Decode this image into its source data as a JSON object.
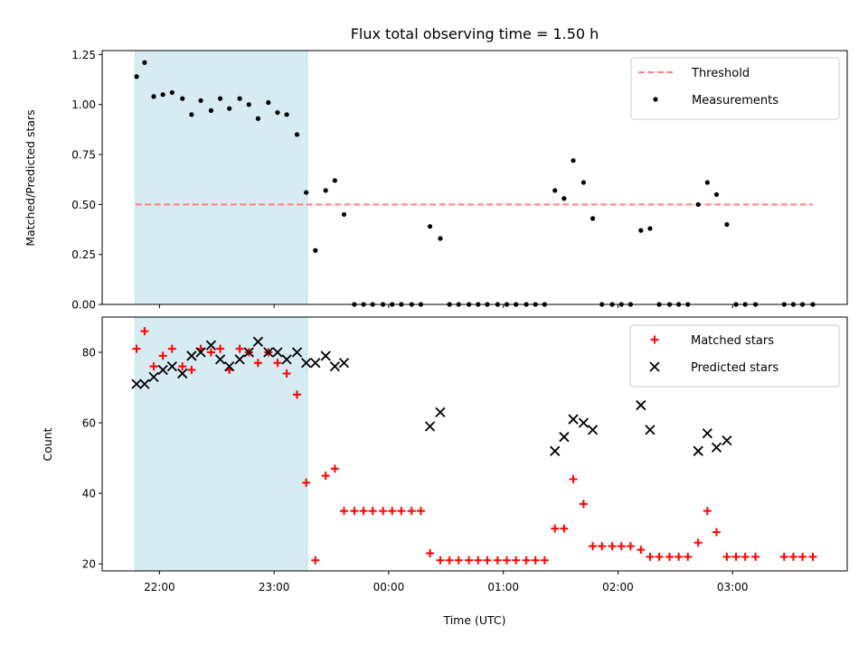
{
  "chart_data": {
    "title": "Flux total observing time = 1.50 h",
    "xlabel": "Time (UTC)",
    "x_tick_labels": [
      "22:00",
      "23:00",
      "00:00",
      "01:00",
      "02:00",
      "03:00"
    ],
    "x_tick_hours": [
      22.0,
      23.0,
      24.0,
      25.0,
      26.0,
      27.0
    ],
    "xlim_hours": [
      21.5,
      28.0
    ],
    "highlight_span_hours": [
      21.79,
      23.29
    ],
    "highlight_color": "#add8e6",
    "top": {
      "type": "scatter",
      "ylabel": "Matched/Predicted stars",
      "ylim": [
        0,
        1.27
      ],
      "y_tick_labels": [
        "0.00",
        "0.25",
        "0.50",
        "0.75",
        "1.00",
        "1.25"
      ],
      "y_ticks": [
        0,
        0.25,
        0.5,
        0.75,
        1.0,
        1.25
      ],
      "threshold": {
        "name": "Threshold",
        "value": 0.5,
        "x_range_hours": [
          21.79,
          27.7
        ],
        "color": "#ff7f7f"
      },
      "series": [
        {
          "name": "Measurements",
          "color": "#000000",
          "points": [
            [
              21.8,
              1.14
            ],
            [
              21.87,
              1.21
            ],
            [
              21.95,
              1.04
            ],
            [
              22.03,
              1.05
            ],
            [
              22.11,
              1.06
            ],
            [
              22.2,
              1.03
            ],
            [
              22.28,
              0.95
            ],
            [
              22.36,
              1.02
            ],
            [
              22.45,
              0.97
            ],
            [
              22.53,
              1.03
            ],
            [
              22.61,
              0.98
            ],
            [
              22.7,
              1.03
            ],
            [
              22.78,
              1.0
            ],
            [
              22.86,
              0.93
            ],
            [
              22.95,
              1.01
            ],
            [
              23.03,
              0.96
            ],
            [
              23.11,
              0.95
            ],
            [
              23.2,
              0.85
            ],
            [
              23.28,
              0.56
            ],
            [
              23.36,
              0.27
            ],
            [
              23.45,
              0.57
            ],
            [
              23.53,
              0.62
            ],
            [
              23.61,
              0.45
            ],
            [
              23.7,
              0
            ],
            [
              23.78,
              0
            ],
            [
              23.86,
              0
            ],
            [
              23.95,
              0
            ],
            [
              24.03,
              0
            ],
            [
              24.11,
              0
            ],
            [
              24.2,
              0
            ],
            [
              24.28,
              0
            ],
            [
              24.36,
              0.39
            ],
            [
              24.45,
              0.33
            ],
            [
              24.53,
              0
            ],
            [
              24.61,
              0
            ],
            [
              24.7,
              0
            ],
            [
              24.78,
              0
            ],
            [
              24.86,
              0
            ],
            [
              24.95,
              0
            ],
            [
              25.03,
              0
            ],
            [
              25.11,
              0
            ],
            [
              25.2,
              0
            ],
            [
              25.28,
              0
            ],
            [
              25.36,
              0
            ],
            [
              25.45,
              0.57
            ],
            [
              25.53,
              0.53
            ],
            [
              25.61,
              0.72
            ],
            [
              25.7,
              0.61
            ],
            [
              25.78,
              0.43
            ],
            [
              25.86,
              0
            ],
            [
              25.95,
              0
            ],
            [
              26.03,
              0
            ],
            [
              26.11,
              0
            ],
            [
              26.2,
              0.37
            ],
            [
              26.28,
              0.38
            ],
            [
              26.36,
              0
            ],
            [
              26.45,
              0
            ],
            [
              26.53,
              0
            ],
            [
              26.61,
              0
            ],
            [
              26.7,
              0.5
            ],
            [
              26.78,
              0.61
            ],
            [
              26.86,
              0.55
            ],
            [
              26.95,
              0.4
            ],
            [
              27.03,
              0
            ],
            [
              27.11,
              0
            ],
            [
              27.2,
              0
            ],
            [
              27.45,
              0
            ],
            [
              27.53,
              0
            ],
            [
              27.61,
              0
            ],
            [
              27.7,
              0
            ]
          ]
        }
      ]
    },
    "bottom": {
      "type": "scatter",
      "ylabel": "Count",
      "ylim": [
        18,
        90
      ],
      "y_tick_labels": [
        "20",
        "40",
        "60",
        "80"
      ],
      "y_ticks": [
        20,
        40,
        60,
        80
      ],
      "series": [
        {
          "name": "Matched stars",
          "marker": "plus",
          "color": "#ff0000",
          "points": [
            [
              21.8,
              81
            ],
            [
              21.87,
              86
            ],
            [
              21.95,
              76
            ],
            [
              22.03,
              79
            ],
            [
              22.11,
              81
            ],
            [
              22.2,
              76
            ],
            [
              22.28,
              75
            ],
            [
              22.36,
              81
            ],
            [
              22.45,
              80
            ],
            [
              22.53,
              81
            ],
            [
              22.61,
              75
            ],
            [
              22.7,
              81
            ],
            [
              22.78,
              80
            ],
            [
              22.86,
              77
            ],
            [
              22.95,
              80
            ],
            [
              23.03,
              77
            ],
            [
              23.11,
              74
            ],
            [
              23.2,
              68
            ],
            [
              23.28,
              43
            ],
            [
              23.36,
              21
            ],
            [
              23.45,
              45
            ],
            [
              23.53,
              47
            ],
            [
              23.61,
              35
            ],
            [
              23.7,
              35
            ],
            [
              23.78,
              35
            ],
            [
              23.86,
              35
            ],
            [
              23.95,
              35
            ],
            [
              24.03,
              35
            ],
            [
              24.11,
              35
            ],
            [
              24.2,
              35
            ],
            [
              24.28,
              35
            ],
            [
              24.36,
              23
            ],
            [
              24.45,
              21
            ],
            [
              24.53,
              21
            ],
            [
              24.61,
              21
            ],
            [
              24.7,
              21
            ],
            [
              24.78,
              21
            ],
            [
              24.86,
              21
            ],
            [
              24.95,
              21
            ],
            [
              25.03,
              21
            ],
            [
              25.11,
              21
            ],
            [
              25.2,
              21
            ],
            [
              25.28,
              21
            ],
            [
              25.36,
              21
            ],
            [
              25.45,
              30
            ],
            [
              25.53,
              30
            ],
            [
              25.61,
              44
            ],
            [
              25.7,
              37
            ],
            [
              25.78,
              25
            ],
            [
              25.86,
              25
            ],
            [
              25.95,
              25
            ],
            [
              26.03,
              25
            ],
            [
              26.11,
              25
            ],
            [
              26.2,
              24
            ],
            [
              26.28,
              22
            ],
            [
              26.36,
              22
            ],
            [
              26.45,
              22
            ],
            [
              26.53,
              22
            ],
            [
              26.61,
              22
            ],
            [
              26.7,
              26
            ],
            [
              26.78,
              35
            ],
            [
              26.86,
              29
            ],
            [
              26.95,
              22
            ],
            [
              27.03,
              22
            ],
            [
              27.11,
              22
            ],
            [
              27.2,
              22
            ],
            [
              27.45,
              22
            ],
            [
              27.53,
              22
            ],
            [
              27.61,
              22
            ],
            [
              27.7,
              22
            ]
          ]
        },
        {
          "name": "Predicted stars",
          "marker": "x",
          "color": "#000000",
          "points": [
            [
              21.8,
              71
            ],
            [
              21.87,
              71
            ],
            [
              21.95,
              73
            ],
            [
              22.03,
              75
            ],
            [
              22.11,
              76
            ],
            [
              22.2,
              74
            ],
            [
              22.28,
              79
            ],
            [
              22.36,
              80
            ],
            [
              22.45,
              82
            ],
            [
              22.53,
              78
            ],
            [
              22.61,
              76
            ],
            [
              22.7,
              78
            ],
            [
              22.78,
              80
            ],
            [
              22.86,
              83
            ],
            [
              22.95,
              80
            ],
            [
              23.03,
              80
            ],
            [
              23.11,
              78
            ],
            [
              23.2,
              80
            ],
            [
              23.28,
              77
            ],
            [
              23.36,
              77
            ],
            [
              23.45,
              79
            ],
            [
              23.53,
              76
            ],
            [
              23.61,
              77
            ],
            [
              24.36,
              59
            ],
            [
              24.45,
              63
            ],
            [
              25.45,
              52
            ],
            [
              25.53,
              56
            ],
            [
              25.61,
              61
            ],
            [
              25.7,
              60
            ],
            [
              25.78,
              58
            ],
            [
              26.2,
              65
            ],
            [
              26.28,
              58
            ],
            [
              26.7,
              52
            ],
            [
              26.78,
              57
            ],
            [
              26.86,
              53
            ],
            [
              26.95,
              55
            ]
          ]
        }
      ]
    }
  }
}
